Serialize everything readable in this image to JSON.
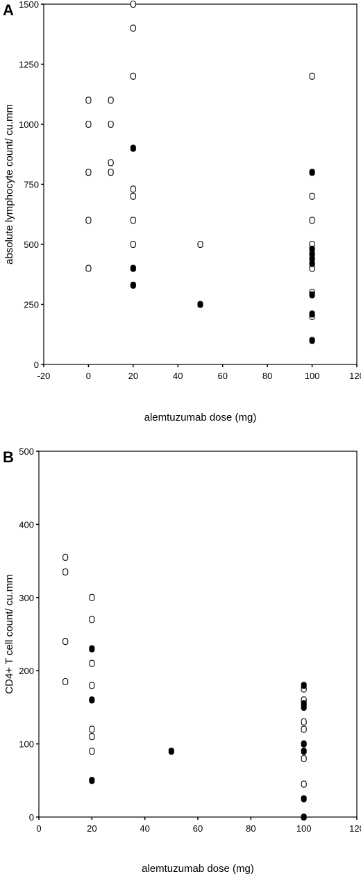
{
  "chart_data": [
    {
      "panel_label": "A",
      "type": "scatter",
      "xlabel": "alemtuzumab dose (mg)",
      "ylabel": "absolute lymphocyte count/ cu.mm",
      "xlim": [
        -20,
        120
      ],
      "ylim": [
        0,
        1500
      ],
      "x_ticks": [
        -20,
        0,
        20,
        40,
        60,
        80,
        100,
        120
      ],
      "y_ticks": [
        0,
        250,
        500,
        750,
        1000,
        1250,
        1500
      ],
      "grid": false,
      "series": [
        {
          "marker": "open",
          "points": [
            [
              0,
              1100
            ],
            [
              0,
              1000
            ],
            [
              0,
              800
            ],
            [
              0,
              600
            ],
            [
              0,
              400
            ],
            [
              10,
              1100
            ],
            [
              10,
              1000
            ],
            [
              10,
              840
            ],
            [
              10,
              800
            ],
            [
              20,
              1500
            ],
            [
              20,
              1400
            ],
            [
              20,
              1200
            ],
            [
              20,
              730
            ],
            [
              20,
              700
            ],
            [
              20,
              600
            ],
            [
              20,
              500
            ],
            [
              50,
              500
            ],
            [
              100,
              1200
            ],
            [
              100,
              700
            ],
            [
              100,
              600
            ],
            [
              100,
              500
            ],
            [
              100,
              400
            ],
            [
              100,
              300
            ],
            [
              100,
              200
            ]
          ]
        },
        {
          "marker": "filled",
          "points": [
            [
              20,
              900
            ],
            [
              20,
              400
            ],
            [
              20,
              330
            ],
            [
              50,
              250
            ],
            [
              100,
              800
            ],
            [
              100,
              480
            ],
            [
              100,
              460
            ],
            [
              100,
              440
            ],
            [
              100,
              420
            ],
            [
              100,
              290
            ],
            [
              100,
              210
            ],
            [
              100,
              100
            ]
          ]
        }
      ]
    },
    {
      "panel_label": "B",
      "type": "scatter",
      "xlabel": "alemtuzumab dose (mg)",
      "ylabel": "CD4+ T cell count/ cu.mm",
      "xlim": [
        0,
        120
      ],
      "ylim": [
        0,
        500
      ],
      "x_ticks": [
        0,
        20,
        40,
        60,
        80,
        100,
        120
      ],
      "y_ticks": [
        0,
        100,
        200,
        300,
        400,
        500
      ],
      "grid": false,
      "series": [
        {
          "marker": "open",
          "points": [
            [
              10,
              355
            ],
            [
              10,
              335
            ],
            [
              10,
              240
            ],
            [
              10,
              185
            ],
            [
              20,
              300
            ],
            [
              20,
              270
            ],
            [
              20,
              210
            ],
            [
              20,
              180
            ],
            [
              20,
              120
            ],
            [
              20,
              110
            ],
            [
              20,
              90
            ],
            [
              100,
              175
            ],
            [
              100,
              160
            ],
            [
              100,
              130
            ],
            [
              100,
              120
            ],
            [
              100,
              80
            ],
            [
              100,
              45
            ]
          ]
        },
        {
          "marker": "filled",
          "points": [
            [
              20,
              230
            ],
            [
              20,
              160
            ],
            [
              20,
              50
            ],
            [
              50,
              90
            ],
            [
              100,
              180
            ],
            [
              100,
              155
            ],
            [
              100,
              150
            ],
            [
              100,
              100
            ],
            [
              100,
              90
            ],
            [
              100,
              25
            ],
            [
              100,
              0
            ]
          ]
        }
      ]
    }
  ]
}
